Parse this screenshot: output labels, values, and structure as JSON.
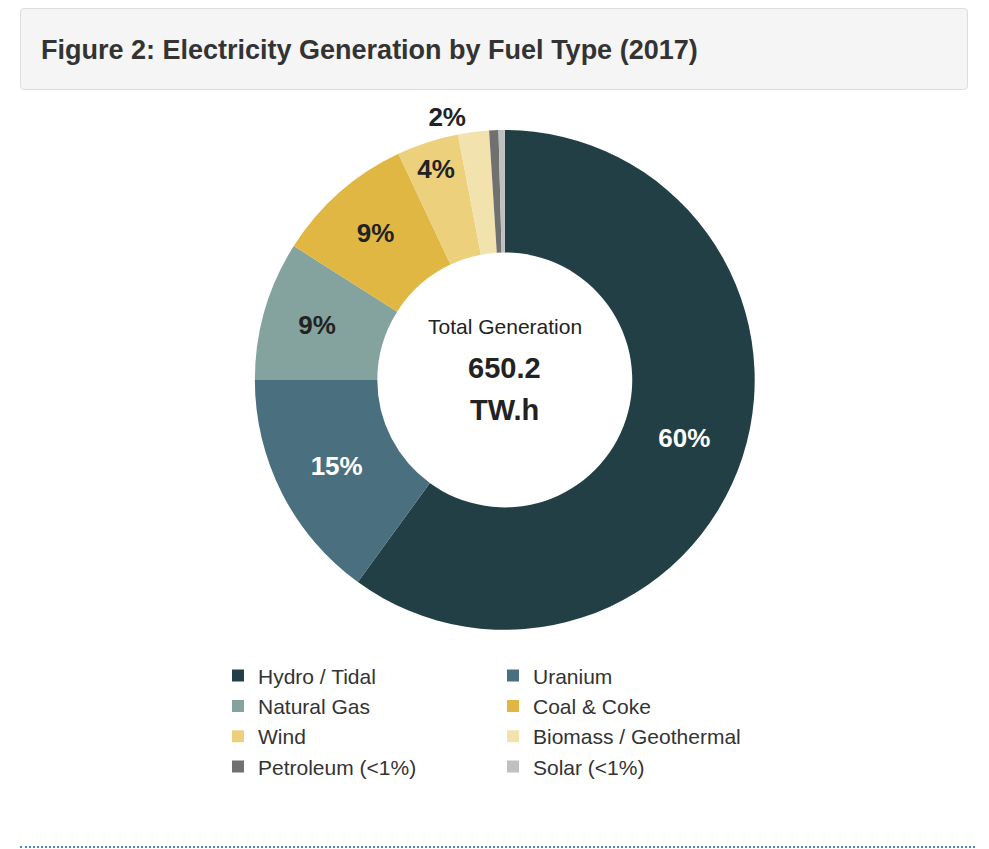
{
  "chart_data": {
    "type": "pie",
    "title": "Figure 2: Electricity Generation by Fuel Type (2017)",
    "categories": [
      "Hydro / Tidal",
      "Uranium",
      "Natural Gas",
      "Coal & Coke",
      "Wind",
      "Biomass / Geothermal",
      "Petroleum (<1%)",
      "Solar (<1%)"
    ],
    "values": [
      60,
      15,
      9,
      9,
      4,
      2,
      0.6,
      0.4
    ],
    "value_labels": [
      "60%",
      "15%",
      "9%",
      "9%",
      "4%",
      "2%",
      null,
      null
    ],
    "colors": [
      "#233f46",
      "#4a6f7e",
      "#84a39f",
      "#e1b743",
      "#ecd07b",
      "#f2e2ae",
      "#707070",
      "#c0c0c0"
    ],
    "data_labels": true,
    "legend": "bottom",
    "center_label": "Total Generation",
    "total": 650.2,
    "total_unit": "TW.h"
  }
}
